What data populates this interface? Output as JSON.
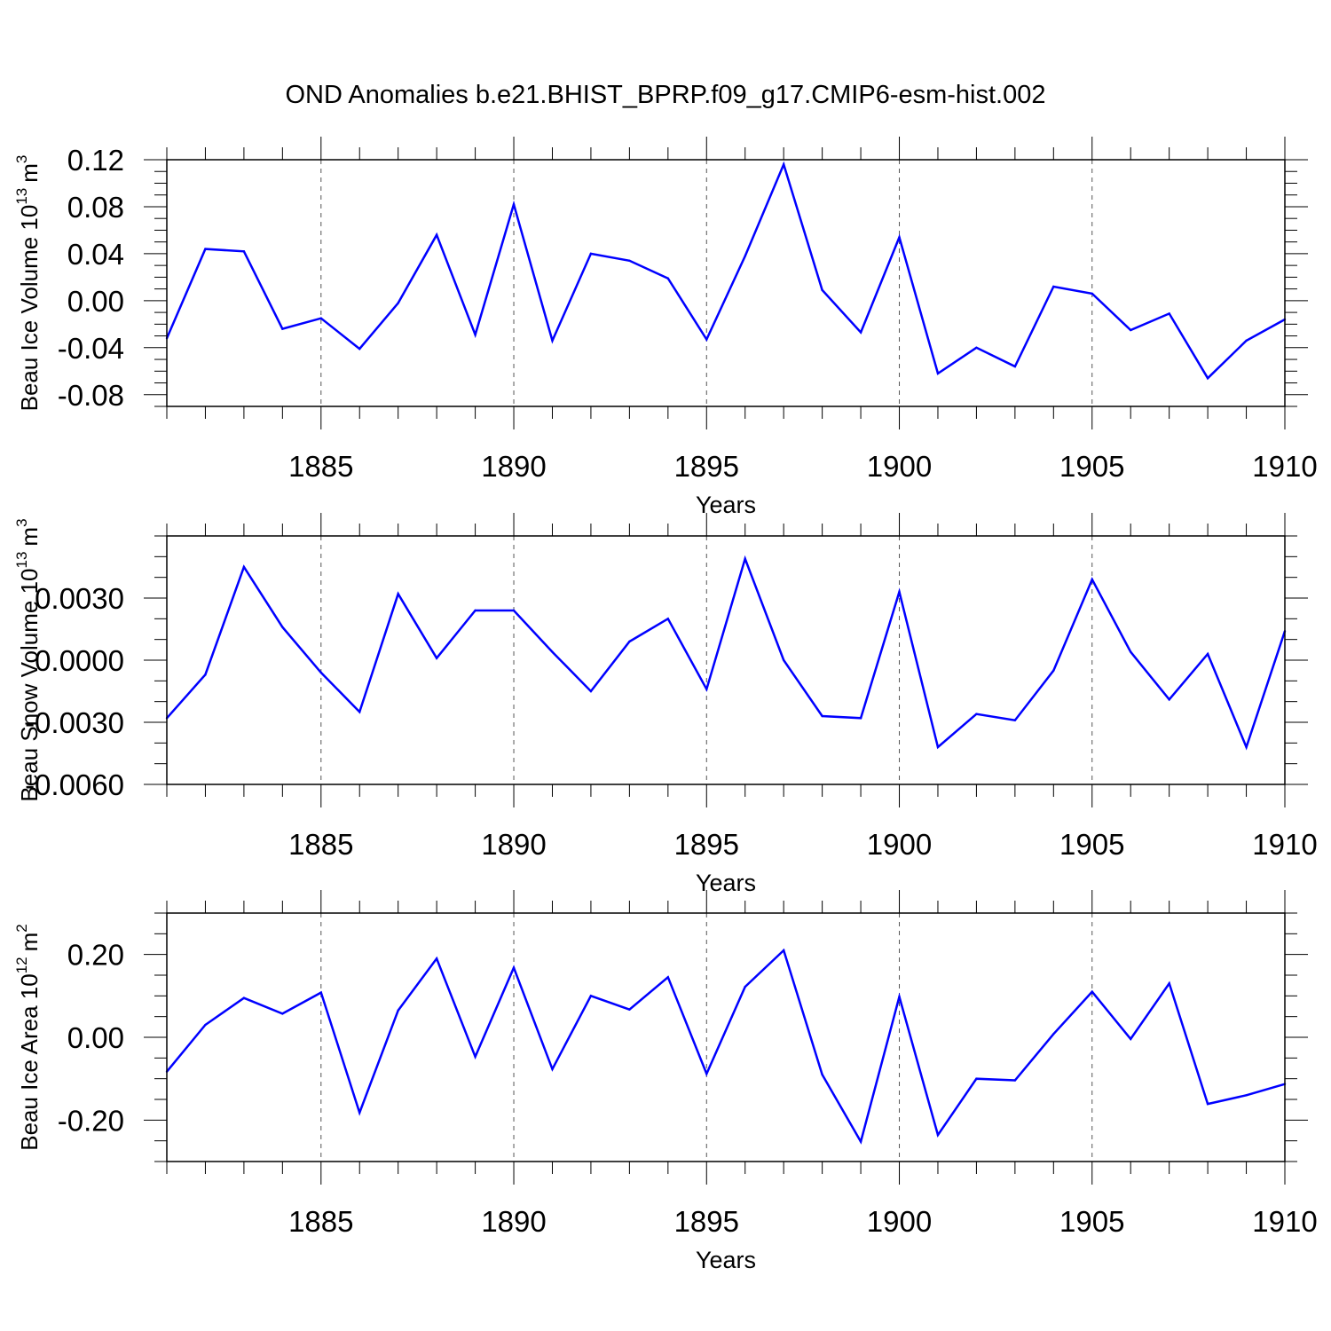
{
  "chart_data": {
    "type": "line",
    "title": "OND Anomalies b.e21.BHIST_BPRP.f09_g17.CMIP6-esm-hist.002",
    "series_color": "#0000ff",
    "grid": "dashed vertical lines at major x ticks",
    "panels": [
      {
        "name": "ice-volume",
        "ylabel": "Beau Ice Volume 10",
        "ylabel_exp": "13",
        "ylabel_unit": "m",
        "ylabel_unit_exp": "3",
        "xlabel": "Years",
        "xlim": [
          1881,
          1910
        ],
        "ylim": [
          -0.09,
          0.12
        ],
        "x_ticks": [
          1885,
          1890,
          1895,
          1900,
          1905,
          1910
        ],
        "x_tick_labels": [
          "1885",
          "1890",
          "1895",
          "1900",
          "1905",
          "1910"
        ],
        "y_ticks": [
          0.12,
          0.08,
          0.04,
          0.0,
          -0.04,
          -0.08
        ],
        "y_tick_labels": [
          "0.12",
          "0.08",
          "0.04",
          "0.00",
          "-0.04",
          "-0.08"
        ],
        "y_minor_step": 0.01,
        "x": [
          1881,
          1882,
          1883,
          1884,
          1885,
          1886,
          1887,
          1888,
          1889,
          1890,
          1891,
          1892,
          1893,
          1894,
          1895,
          1896,
          1897,
          1898,
          1899,
          1900,
          1901,
          1902,
          1903,
          1904,
          1905,
          1906,
          1907,
          1908,
          1909,
          1910
        ],
        "values": [
          -0.032,
          0.044,
          0.042,
          -0.024,
          -0.015,
          -0.041,
          -0.002,
          0.056,
          -0.029,
          0.082,
          -0.034,
          0.04,
          0.034,
          0.019,
          -0.033,
          0.038,
          0.116,
          0.009,
          -0.027,
          0.054,
          -0.062,
          -0.04,
          -0.056,
          0.012,
          0.006,
          -0.025,
          -0.011,
          -0.066,
          -0.034,
          -0.016
        ]
      },
      {
        "name": "snow-volume",
        "ylabel": "Beau Snow Volume 10",
        "ylabel_exp": "13",
        "ylabel_unit": "m",
        "ylabel_unit_exp": "3",
        "xlabel": "Years",
        "xlim": [
          1881,
          1910
        ],
        "ylim": [
          -0.006,
          0.006
        ],
        "x_ticks": [
          1885,
          1890,
          1895,
          1900,
          1905,
          1910
        ],
        "x_tick_labels": [
          "1885",
          "1890",
          "1895",
          "1900",
          "1905",
          "1910"
        ],
        "y_ticks": [
          0.003,
          0.0,
          -0.003,
          -0.006
        ],
        "y_tick_labels": [
          "0.0030",
          "0.0000",
          "-0.0030",
          "-0.0060"
        ],
        "y_minor_step": 0.001,
        "x": [
          1881,
          1882,
          1883,
          1884,
          1885,
          1886,
          1887,
          1888,
          1889,
          1890,
          1891,
          1892,
          1893,
          1894,
          1895,
          1896,
          1897,
          1898,
          1899,
          1900,
          1901,
          1902,
          1903,
          1904,
          1905,
          1906,
          1907,
          1908,
          1909,
          1910
        ],
        "values": [
          -0.0028,
          -0.0007,
          0.0045,
          0.0016,
          -0.0006,
          -0.0025,
          0.0032,
          0.0001,
          0.0024,
          0.0024,
          0.0004,
          -0.0015,
          0.0009,
          0.002,
          -0.0014,
          0.0049,
          0.0,
          -0.0027,
          -0.0028,
          0.0033,
          -0.0042,
          -0.0026,
          -0.0029,
          -0.0005,
          0.0039,
          0.0004,
          -0.0019,
          0.0003,
          -0.0042,
          0.0014
        ]
      },
      {
        "name": "ice-area",
        "ylabel": "Beau Ice Area 10",
        "ylabel_exp": "12",
        "ylabel_unit": "m",
        "ylabel_unit_exp": "2",
        "xlabel": "Years",
        "xlim": [
          1881,
          1910
        ],
        "ylim": [
          -0.3,
          0.3
        ],
        "x_ticks": [
          1885,
          1890,
          1895,
          1900,
          1905,
          1910
        ],
        "x_tick_labels": [
          "1885",
          "1890",
          "1895",
          "1900",
          "1905",
          "1910"
        ],
        "y_ticks": [
          0.2,
          0.0,
          -0.2
        ],
        "y_tick_labels": [
          "0.20",
          "0.00",
          "-0.20"
        ],
        "y_minor_step": 0.05,
        "x": [
          1881,
          1882,
          1883,
          1884,
          1885,
          1886,
          1887,
          1888,
          1889,
          1890,
          1891,
          1892,
          1893,
          1894,
          1895,
          1896,
          1897,
          1898,
          1899,
          1900,
          1901,
          1902,
          1903,
          1904,
          1905,
          1906,
          1907,
          1908,
          1909,
          1910
        ],
        "values": [
          -0.083,
          0.03,
          0.095,
          0.057,
          0.108,
          -0.182,
          0.065,
          0.19,
          -0.047,
          0.168,
          -0.077,
          0.1,
          0.067,
          0.145,
          -0.088,
          0.122,
          0.21,
          -0.09,
          -0.252,
          0.098,
          -0.236,
          -0.1,
          -0.104,
          0.008,
          0.11,
          -0.004,
          0.13,
          -0.161,
          -0.14,
          -0.113
        ]
      }
    ]
  }
}
